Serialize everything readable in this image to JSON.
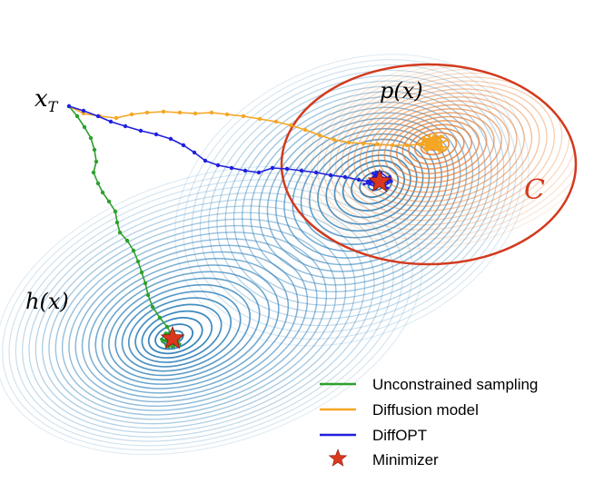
{
  "labels": {
    "start": "x",
    "start_subscript": "T",
    "data_density": "p(x)",
    "objective": "h(x)",
    "constraint_set": "C"
  },
  "legend": [
    {
      "label": "Unconstrained sampling",
      "color": "#2ca02c",
      "marker": "line"
    },
    {
      "label": "Diffusion model",
      "color": "#f5a623",
      "marker": "line"
    },
    {
      "label": "DiffOPT",
      "color": "#1f1fe0",
      "marker": "line"
    },
    {
      "label": "Minimizer",
      "color": "#d9381e",
      "marker": "star"
    }
  ],
  "colors": {
    "objective_contours": "#1f77b4",
    "density_contours": "#e8782a",
    "constraint_boundary": "#d23a1e",
    "unconstrained_path": "#2ca02c",
    "diffusion_path": "#f5a623",
    "diffopt_path": "#1f1fe0",
    "minimizer_star": "#d9381e"
  }
}
